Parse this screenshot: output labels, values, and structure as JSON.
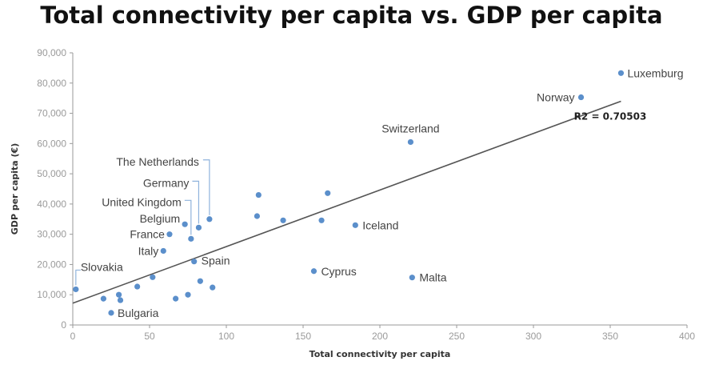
{
  "chart_data": {
    "type": "scatter",
    "title": "Total connectivity per capita vs. GDP per capita",
    "xlabel": "Total connectivity per capita",
    "ylabel": "GDP per capita (€)",
    "xlim": [
      0,
      400
    ],
    "ylim": [
      0,
      90000
    ],
    "xticks": [
      0,
      50,
      100,
      150,
      200,
      250,
      300,
      350,
      400
    ],
    "yticks": [
      {
        "value": 0,
        "label": "0"
      },
      {
        "value": 10000,
        "label": "10,000"
      },
      {
        "value": 20000,
        "label": "20,000"
      },
      {
        "value": 30000,
        "label": "30,000"
      },
      {
        "value": 40000,
        "label": "40,000"
      },
      {
        "value": 50000,
        "label": "50,000"
      },
      {
        "value": 60000,
        "label": "60,000"
      },
      {
        "value": 70000,
        "label": "70,000"
      },
      {
        "value": 80000,
        "label": "80,000"
      },
      {
        "value": 90000,
        "label": "90,000"
      }
    ],
    "grid": false,
    "point_color": "#5b8fcb",
    "trendline": {
      "x0": 0,
      "y0": 7200,
      "x1": 357,
      "y1": 74000,
      "label": "R2 = 0.70503",
      "label_x": 350,
      "label_y": 69000
    },
    "points": [
      {
        "x": 2,
        "y": 11800,
        "label": "Slovakia"
      },
      {
        "x": 20,
        "y": 8700,
        "label": ""
      },
      {
        "x": 25,
        "y": 4000,
        "label": "Bulgaria"
      },
      {
        "x": 30,
        "y": 10000,
        "label": ""
      },
      {
        "x": 31,
        "y": 8200,
        "label": ""
      },
      {
        "x": 42,
        "y": 12700,
        "label": ""
      },
      {
        "x": 52,
        "y": 15800,
        "label": ""
      },
      {
        "x": 59,
        "y": 24500,
        "label": "Italy"
      },
      {
        "x": 63,
        "y": 30000,
        "label": "France"
      },
      {
        "x": 67,
        "y": 8700,
        "label": ""
      },
      {
        "x": 73,
        "y": 33300,
        "label": "Belgium"
      },
      {
        "x": 75,
        "y": 10000,
        "label": ""
      },
      {
        "x": 77,
        "y": 28500,
        "label": "United Kingdom"
      },
      {
        "x": 79,
        "y": 21000,
        "label": "Spain"
      },
      {
        "x": 82,
        "y": 32200,
        "label": "Germany"
      },
      {
        "x": 83,
        "y": 14500,
        "label": ""
      },
      {
        "x": 89,
        "y": 35000,
        "label": "The Netherlands"
      },
      {
        "x": 91,
        "y": 12400,
        "label": ""
      },
      {
        "x": 120,
        "y": 36000,
        "label": ""
      },
      {
        "x": 121,
        "y": 43000,
        "label": ""
      },
      {
        "x": 137,
        "y": 34600,
        "label": ""
      },
      {
        "x": 157,
        "y": 17800,
        "label": "Cyprus"
      },
      {
        "x": 162,
        "y": 34600,
        "label": ""
      },
      {
        "x": 166,
        "y": 43600,
        "label": ""
      },
      {
        "x": 184,
        "y": 33000,
        "label": "Iceland"
      },
      {
        "x": 220,
        "y": 60500,
        "label": "Switzerland"
      },
      {
        "x": 221,
        "y": 15700,
        "label": "Malta"
      },
      {
        "x": 331,
        "y": 75300,
        "label": "Norway"
      },
      {
        "x": 357,
        "y": 83300,
        "label": "Luxemburg"
      }
    ]
  }
}
